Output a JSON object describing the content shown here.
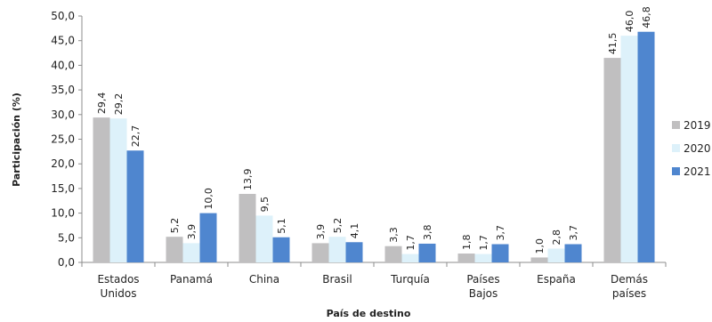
{
  "chart_data": {
    "type": "bar",
    "title": "",
    "xlabel": "País de destino",
    "ylabel": "Participación (%)",
    "ylim": [
      0,
      50
    ],
    "ytick_step": 5,
    "yticks": [
      "0,0",
      "5,0",
      "10,0",
      "15,0",
      "20,0",
      "25,0",
      "30,0",
      "35,0",
      "40,0",
      "45,0",
      "50,0"
    ],
    "categories": [
      [
        "Estados",
        "Unidos"
      ],
      [
        "Panamá"
      ],
      [
        "China"
      ],
      [
        "Brasil"
      ],
      [
        "Turquía"
      ],
      [
        "Países",
        "Bajos"
      ],
      [
        "España"
      ],
      [
        "Demás",
        "países"
      ]
    ],
    "series": [
      {
        "name": "2019",
        "color": "#c0bfc0",
        "values": [
          29.4,
          5.2,
          13.9,
          3.9,
          3.3,
          1.8,
          1.0,
          41.5
        ],
        "labels": [
          "29,4",
          "5,2",
          "13,9",
          "3,9",
          "3,3",
          "1,8",
          "1,0",
          "41,5"
        ]
      },
      {
        "name": "2020",
        "color": "#ddf1fa",
        "values": [
          29.2,
          3.9,
          9.5,
          5.2,
          1.7,
          1.7,
          2.8,
          46.0
        ],
        "labels": [
          "29,2",
          "3,9",
          "9,5",
          "5,2",
          "1,7",
          "1,7",
          "2,8",
          "46,0"
        ]
      },
      {
        "name": "2021",
        "color": "#4f86cf",
        "values": [
          22.7,
          10.0,
          5.1,
          4.1,
          3.8,
          3.7,
          3.7,
          46.8
        ],
        "labels": [
          "22,7",
          "10,0",
          "5,1",
          "4,1",
          "3,8",
          "3,7",
          "3,7",
          "46,8"
        ]
      }
    ],
    "legend": "right",
    "grid": false
  }
}
